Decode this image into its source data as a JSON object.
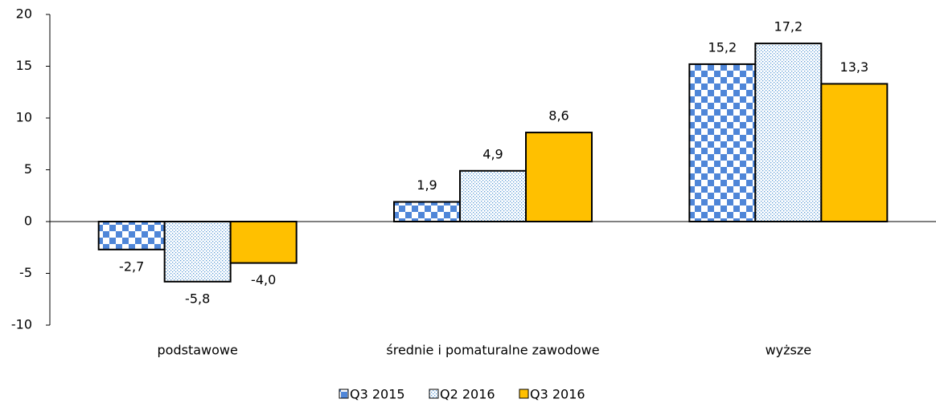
{
  "chart_data": {
    "type": "bar",
    "categories": [
      "podstawowe",
      "średnie i pomaturalne zawodowe",
      "wyższe"
    ],
    "series": [
      {
        "name": "Q3 2015",
        "color": "#4f86d8",
        "pattern": "checker",
        "values": [
          -2.7,
          1.9,
          15.2
        ],
        "value_labels": [
          "-2,7",
          "1,9",
          "15,2"
        ]
      },
      {
        "name": "Q2 2016",
        "color": "#5b9bd5",
        "pattern": "dots",
        "values": [
          -5.8,
          4.9,
          17.2
        ],
        "value_labels": [
          "-5,8",
          "4,9",
          "17,2"
        ]
      },
      {
        "name": "Q3 2016",
        "color": "#ffc000",
        "pattern": "solid",
        "values": [
          -4.0,
          8.6,
          13.3
        ],
        "value_labels": [
          "-4,0",
          "8,6",
          "13,3"
        ]
      }
    ],
    "ylim": [
      -10,
      20
    ],
    "yticks": [
      -10,
      -5,
      0,
      5,
      10,
      15,
      20
    ],
    "grid": false,
    "legend": "bottom"
  }
}
